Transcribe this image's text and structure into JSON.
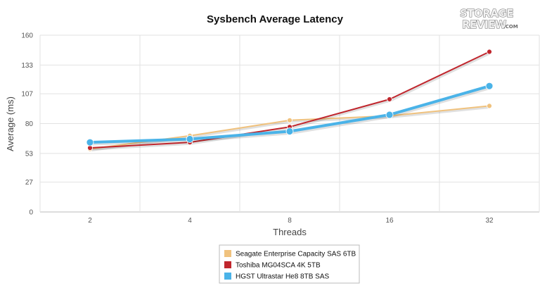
{
  "chart_data": {
    "type": "line",
    "title": "Sysbench Average Latency",
    "xlabel": "Threads",
    "ylabel": "Average (ms)",
    "categories": [
      "2",
      "4",
      "8",
      "16",
      "32"
    ],
    "yticks": [
      0,
      27,
      53,
      80,
      107,
      133,
      160
    ],
    "ylim": [
      0,
      160
    ],
    "grid": true,
    "legend_position": "bottom",
    "series": [
      {
        "name": "Seagate Enterprise Capacity SAS 6TB",
        "color": "#f0c27e",
        "values": [
          57,
          69,
          83,
          87,
          96
        ]
      },
      {
        "name": "Toshiba MG04SCA 4K 5TB",
        "color": "#c0262d",
        "values": [
          58,
          63,
          77,
          102,
          145
        ]
      },
      {
        "name": "HGST Ultrastar He8 8TB SAS",
        "color": "#4ab3e8",
        "values": [
          63,
          66,
          73,
          88,
          114
        ]
      }
    ]
  },
  "logo": {
    "line1": "STORAGE",
    "line2": "REVIEW",
    "suffix": ".COM"
  }
}
